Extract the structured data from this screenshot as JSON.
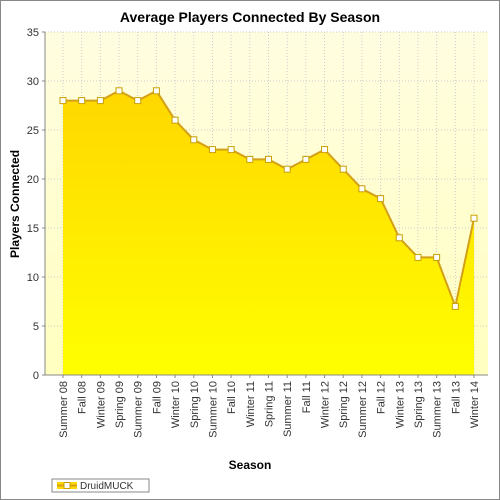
{
  "chart_data": {
    "type": "area",
    "title": "Average Players Connected By Season",
    "x_label": "Season",
    "y_label": "Players Connected",
    "categories": [
      "Summer 08",
      "Fall 08",
      "Winter 09",
      "Spring 09",
      "Summer 09",
      "Fall 09",
      "Winter 10",
      "Spring 10",
      "Summer 10",
      "Fall 10",
      "Winter 11",
      "Spring 11",
      "Summer 11",
      "Fall 11",
      "Winter 12",
      "Spring 12",
      "Summer 12",
      "Fall 12",
      "Winter 13",
      "Spring 13",
      "Summer 13",
      "Fall 13",
      "Winter 14"
    ],
    "series": [
      {
        "name": "DruidMUCK",
        "color": "#ffd700",
        "values": [
          28,
          28,
          28,
          29,
          28,
          29,
          26,
          24,
          23,
          23,
          22,
          22,
          21,
          22,
          23,
          21,
          19,
          18,
          14,
          12,
          12,
          7,
          16
        ]
      }
    ],
    "ylim": [
      0,
      35
    ],
    "yticks": [
      0,
      5,
      10,
      15,
      20,
      25,
      30,
      35
    ],
    "grid": true,
    "legend": "bottom-left"
  }
}
